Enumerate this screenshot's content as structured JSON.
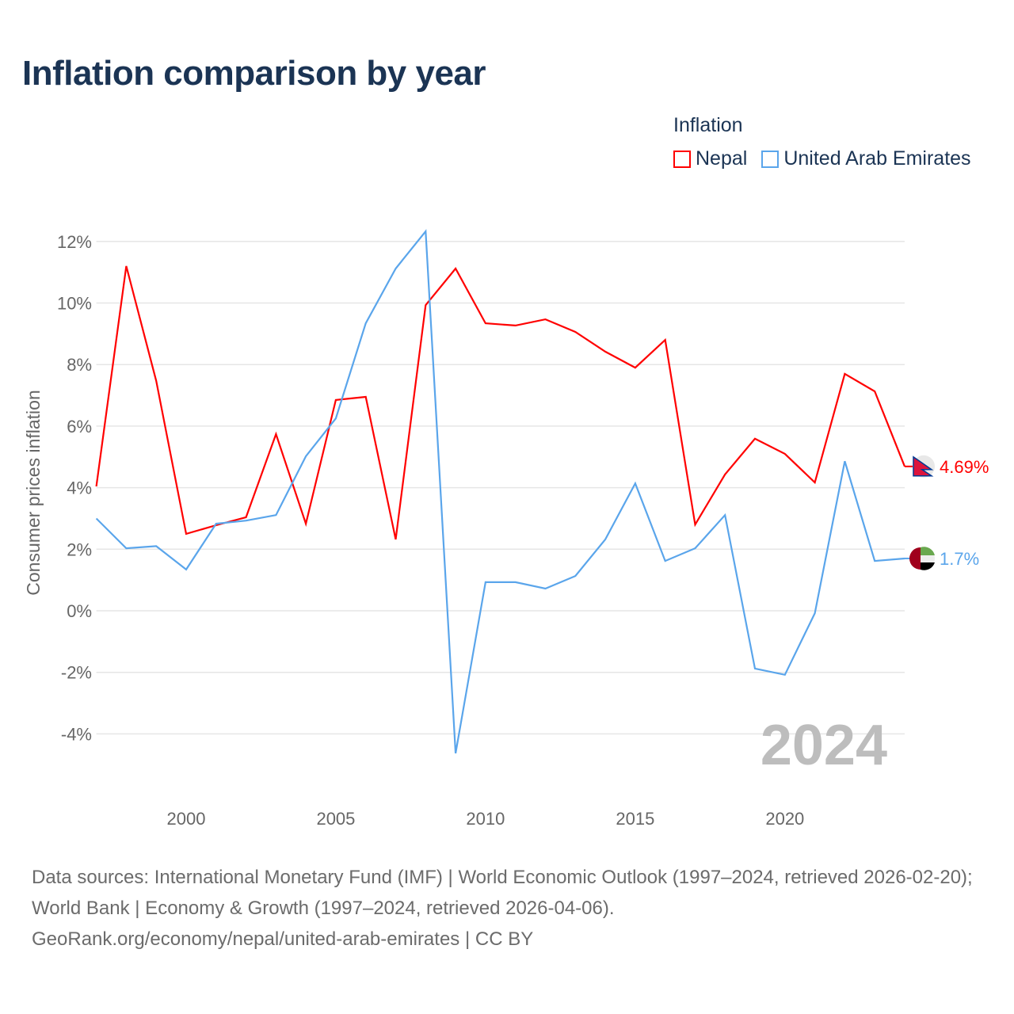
{
  "title": "Inflation comparison by year",
  "legend": {
    "title": "Inflation",
    "items": [
      {
        "label": "Nepal",
        "color": "#ff0000"
      },
      {
        "label": "United Arab Emirates",
        "color": "#5aa5eb"
      }
    ]
  },
  "watermark_year": "2024",
  "sources": {
    "line1": "Data sources: International Monetary Fund (IMF) | World Economic Outlook (1997–2024, retrieved 2026-02-20); World Bank | Economy & Growth (1997–2024, retrieved 2026-04-06).",
    "line2": "GeoRank.org/economy/nepal/united-arab-emirates | CC BY"
  },
  "chart_data": {
    "type": "line",
    "title": "Inflation comparison by year",
    "xlabel": "",
    "ylabel": "Consumer prices inflation",
    "xlim": [
      1997,
      2024
    ],
    "ylim": [
      -5,
      13
    ],
    "grid": true,
    "legend_position": "top-right",
    "x_ticks": [
      2000,
      2005,
      2010,
      2015,
      2020
    ],
    "y_ticks": [
      -4,
      -2,
      0,
      2,
      4,
      6,
      8,
      10,
      12
    ],
    "y_tick_labels": [
      "-4%",
      "-2%",
      "0%",
      "2%",
      "4%",
      "6%",
      "8%",
      "10%",
      "12%"
    ],
    "x": [
      1997,
      1998,
      1999,
      2000,
      2001,
      2002,
      2003,
      2004,
      2005,
      2006,
      2007,
      2008,
      2009,
      2010,
      2011,
      2012,
      2013,
      2014,
      2015,
      2016,
      2017,
      2018,
      2019,
      2020,
      2021,
      2022,
      2023,
      2024
    ],
    "series": [
      {
        "name": "Nepal",
        "color": "#ff0000",
        "end_label": "4.69%",
        "values": [
          4.04,
          11.2,
          7.47,
          2.5,
          2.78,
          3.04,
          5.74,
          2.83,
          6.85,
          6.95,
          2.32,
          9.93,
          11.12,
          9.34,
          9.27,
          9.47,
          9.06,
          8.42,
          7.9,
          8.8,
          2.8,
          4.43,
          5.59,
          5.1,
          4.17,
          7.7,
          7.13,
          4.69
        ]
      },
      {
        "name": "United Arab Emirates",
        "color": "#5aa5eb",
        "end_label": "1.7%",
        "values": [
          3.0,
          2.03,
          2.1,
          1.34,
          2.83,
          2.93,
          3.11,
          5.02,
          6.25,
          9.34,
          11.12,
          12.33,
          -4.63,
          0.93,
          0.93,
          0.72,
          1.13,
          2.32,
          4.14,
          1.62,
          2.03,
          3.11,
          -1.88,
          -2.08,
          -0.08,
          4.86,
          1.62,
          1.7
        ]
      }
    ]
  }
}
